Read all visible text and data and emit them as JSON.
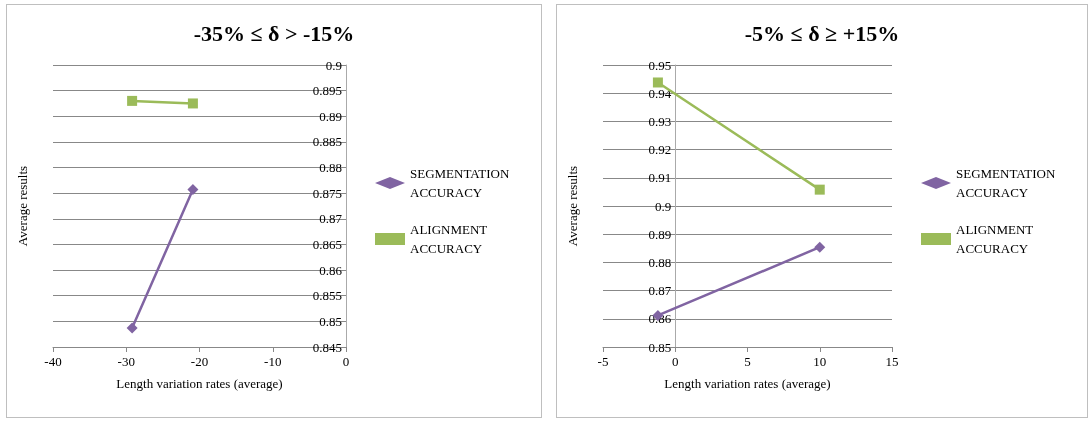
{
  "chart_data": [
    {
      "type": "line",
      "title": "-35% ≤ δ > -15%",
      "xlabel": "Length variation rates (average)",
      "ylabel": "Average results",
      "series": [
        {
          "name": "SEGMENTATION ACCURACY",
          "color": "#8064a2",
          "marker": "diamond",
          "x": [
            -29.2,
            -20.9
          ],
          "values": [
            0.8487,
            0.8757
          ]
        },
        {
          "name": "ALIGNMENT ACCURACY",
          "color": "#9bbb59",
          "marker": "square",
          "x": [
            -29.2,
            -20.9
          ],
          "values": [
            0.893,
            0.8925
          ]
        }
      ],
      "xlim": [
        -40,
        0
      ],
      "xticks": [
        -40,
        -30,
        -20,
        -10,
        0
      ],
      "ylim": [
        0.845,
        0.9
      ],
      "yticks": [
        0.845,
        0.85,
        0.855,
        0.86,
        0.865,
        0.87,
        0.875,
        0.88,
        0.885,
        0.89,
        0.895,
        0.9
      ],
      "grid": "y",
      "legend": "right"
    },
    {
      "type": "line",
      "title": "-5% ≤ δ ≥ +15%",
      "xlabel": "Length variation rates (average)",
      "ylabel": "Average results",
      "series": [
        {
          "name": "SEGMENTATION ACCURACY",
          "color": "#8064a2",
          "marker": "diamond",
          "x": [
            -1.2,
            10
          ],
          "values": [
            0.8612,
            0.8854
          ]
        },
        {
          "name": "ALIGNMENT ACCURACY",
          "color": "#9bbb59",
          "marker": "square",
          "x": [
            -1.2,
            10
          ],
          "values": [
            0.9438,
            0.9058
          ]
        }
      ],
      "xlim": [
        -5,
        15
      ],
      "xticks": [
        -5,
        0,
        5,
        10,
        15
      ],
      "ylim": [
        0.85,
        0.95
      ],
      "yticks": [
        0.85,
        0.86,
        0.87,
        0.88,
        0.89,
        0.9,
        0.91,
        0.92,
        0.93,
        0.94,
        0.95
      ],
      "grid": "y",
      "legend": "right"
    }
  ]
}
